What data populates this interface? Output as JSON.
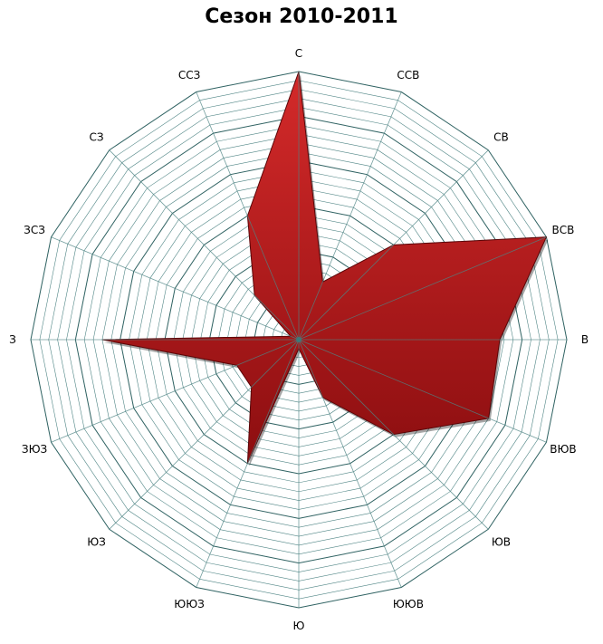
{
  "chart_data": {
    "type": "radar",
    "title": "Сезон 2010-2011",
    "categories": [
      "С",
      "ССВ",
      "СВ",
      "ВСВ",
      "В",
      "ВЮВ",
      "ЮВ",
      "ЮЮВ",
      "Ю",
      "ЮЮЗ",
      "ЮЗ",
      "ЗЮЗ",
      "З",
      "ЗСЗ",
      "СЗ",
      "ССЗ"
    ],
    "values": [
      30,
      7,
      15,
      30,
      22.5,
      23,
      15,
      7,
      1,
      15,
      7.5,
      7.5,
      22,
      1,
      7,
      15
    ],
    "range": [
      0,
      30
    ],
    "grid": true,
    "legend": "none",
    "colors": {
      "fill": "#a8161a",
      "fill_light": "#d42a2a",
      "grid": "#4f8585",
      "grid_major": "#2f6262"
    }
  }
}
